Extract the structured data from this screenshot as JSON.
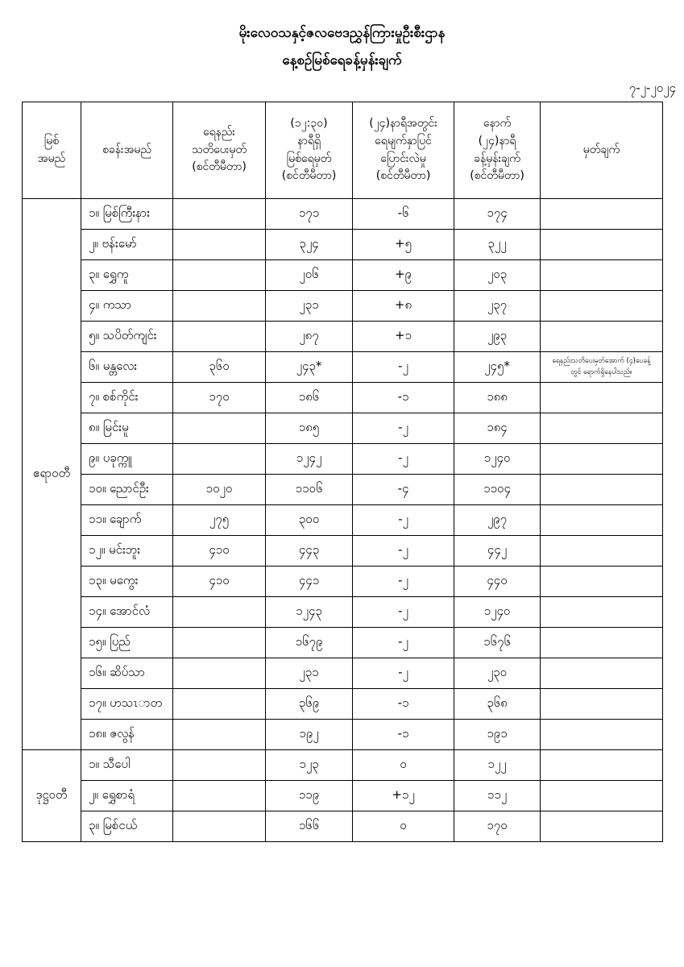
{
  "header": {
    "title_line1": "မိုးလေဝသနှင့်ဇလဗေဒညွှန်ကြားမှုဦးစီးဌာန",
    "title_line2": "နေ့စဉ်မြစ်ရေခန့်မှန်းချက်",
    "date": "၇-၂-၂၀၂၄"
  },
  "table": {
    "columns": [
      {
        "key": "river",
        "label": [
          "မြစ်",
          "အမည်"
        ]
      },
      {
        "key": "station",
        "label": [
          "စခန်းအမည်"
        ]
      },
      {
        "key": "warning",
        "label": [
          "ရေနည်း",
          "သတိပေးမှတ်",
          "(စင်တီမီတာ)"
        ]
      },
      {
        "key": "level",
        "label": [
          "(၁၂:၃၀)",
          "နာရီရှိ",
          "မြစ်ရေမှတ်",
          "(စင်တီမီတာ)"
        ]
      },
      {
        "key": "change",
        "label": [
          "(၂၄)နာရီအတွင်း",
          "ရေမျက်နှာပြင်",
          "ပြောင်းလဲမှု",
          "(စင်တီမီတာ)"
        ]
      },
      {
        "key": "forecast",
        "label": [
          "နောက်",
          "(၂၄)နာရီ",
          "ခန့်မှန်းချက်",
          "(စင်တီမီတာ)"
        ]
      },
      {
        "key": "remark",
        "label": [
          "မှတ်ချက်"
        ]
      }
    ],
    "river_groups": [
      {
        "river": "ဧရာဝတီ",
        "stations": [
          {
            "name": "၁။ မြစ်ကြီးနား",
            "warning": "",
            "level": "၁၇၁",
            "change": "-၆",
            "forecast": "၁၇၄",
            "remark": ""
          },
          {
            "name": "၂။ ဗန်းမော်",
            "warning": "",
            "level": "၃၂၄",
            "change": "+၅",
            "forecast": "၃၂၂",
            "remark": ""
          },
          {
            "name": "၃။ ရွှေကူ",
            "warning": "",
            "level": "၂၀၆",
            "change": "+၉",
            "forecast": "၂၀၃",
            "remark": ""
          },
          {
            "name": "၄။ ကသာ",
            "warning": "",
            "level": "၂၃၁",
            "change": "+၈",
            "forecast": "၂၃၇",
            "remark": ""
          },
          {
            "name": "၅။ သပိတ်ကျင်း",
            "warning": "",
            "level": "၂၈၇",
            "change": "+၁",
            "forecast": "၂၉၃",
            "remark": ""
          },
          {
            "name": "၆။ မန္တလေး",
            "warning": "၃၆၀",
            "level": "၂၄၃*",
            "change": "-၂",
            "forecast": "၂၄၅*",
            "remark": "ရေနည်းသတိပေးမှတ်အောက် (၄)ပေခန့်တွင် ရောက်ရှိနေပါသည်။"
          },
          {
            "name": "၇။ စစ်ကိုင်း",
            "warning": "၁၇၀",
            "level": "၁၈၆",
            "change": "-၁",
            "forecast": "၁၈၈",
            "remark": ""
          },
          {
            "name": "၈။ မြင်းမူ",
            "warning": "",
            "level": "၁၈၅",
            "change": "-၂",
            "forecast": "၁၈၄",
            "remark": ""
          },
          {
            "name": "၉။ ပခုက္ကူ",
            "warning": "",
            "level": "၁၂၄၂",
            "change": "-၂",
            "forecast": "၁၂၄၀",
            "remark": ""
          },
          {
            "name": "၁၀။ ညောင်ဦး",
            "warning": "၁၀၂၀",
            "level": "၁၁၀၆",
            "change": "-၄",
            "forecast": "၁၁၀၄",
            "remark": ""
          },
          {
            "name": "၁၁။ ချောက်",
            "warning": "၂၇၅",
            "level": "၃၀၀",
            "change": "-၂",
            "forecast": "၂၉၇",
            "remark": ""
          },
          {
            "name": "၁၂။ မင်းဘူး",
            "warning": "၄၁၀",
            "level": "၄၄၃",
            "change": "-၂",
            "forecast": "၄၄၂",
            "remark": ""
          },
          {
            "name": "၁၃။ မကွေး",
            "warning": "၄၁၀",
            "level": "၄၄၁",
            "change": "-၂",
            "forecast": "၄၄၀",
            "remark": ""
          },
          {
            "name": "၁၄။ အောင်လံ",
            "warning": "",
            "level": "၁၂၄၃",
            "change": "-၂",
            "forecast": "၁၂၄၀",
            "remark": ""
          },
          {
            "name": "၁၅။ ပြည်",
            "warning": "",
            "level": "၁၆၇၉",
            "change": "-၂",
            "forecast": "၁၆၇၆",
            "remark": ""
          },
          {
            "name": "၁၆။ ဆိပ်သာ",
            "warning": "",
            "level": "၂၃၁",
            "change": "-၂",
            "forecast": "၂၃၀",
            "remark": ""
          },
          {
            "name": "၁၇။ ဟသၤာတ",
            "warning": "",
            "level": "၃၆၉",
            "change": "-၁",
            "forecast": "၃၆၈",
            "remark": ""
          },
          {
            "name": "၁၈။ ဇလွန်",
            "warning": "",
            "level": "၁၉၂",
            "change": "-၁",
            "forecast": "၁၉၁",
            "remark": ""
          }
        ]
      },
      {
        "river": "ဒုဋ္ဌဝတီ",
        "stations": [
          {
            "name": "၁။ သီပေါ",
            "warning": "",
            "level": "၁၂၃",
            "change": "၀",
            "forecast": "၁၂၂",
            "remark": ""
          },
          {
            "name": "၂။ ရွှေစာရံ",
            "warning": "",
            "level": "၁၁၉",
            "change": "+၁၂",
            "forecast": "၁၁၂",
            "remark": ""
          },
          {
            "name": "၃။ မြစ်ငယ်",
            "warning": "",
            "level": "၁၆၆",
            "change": "၀",
            "forecast": "၁၇၀",
            "remark": ""
          }
        ]
      }
    ]
  }
}
